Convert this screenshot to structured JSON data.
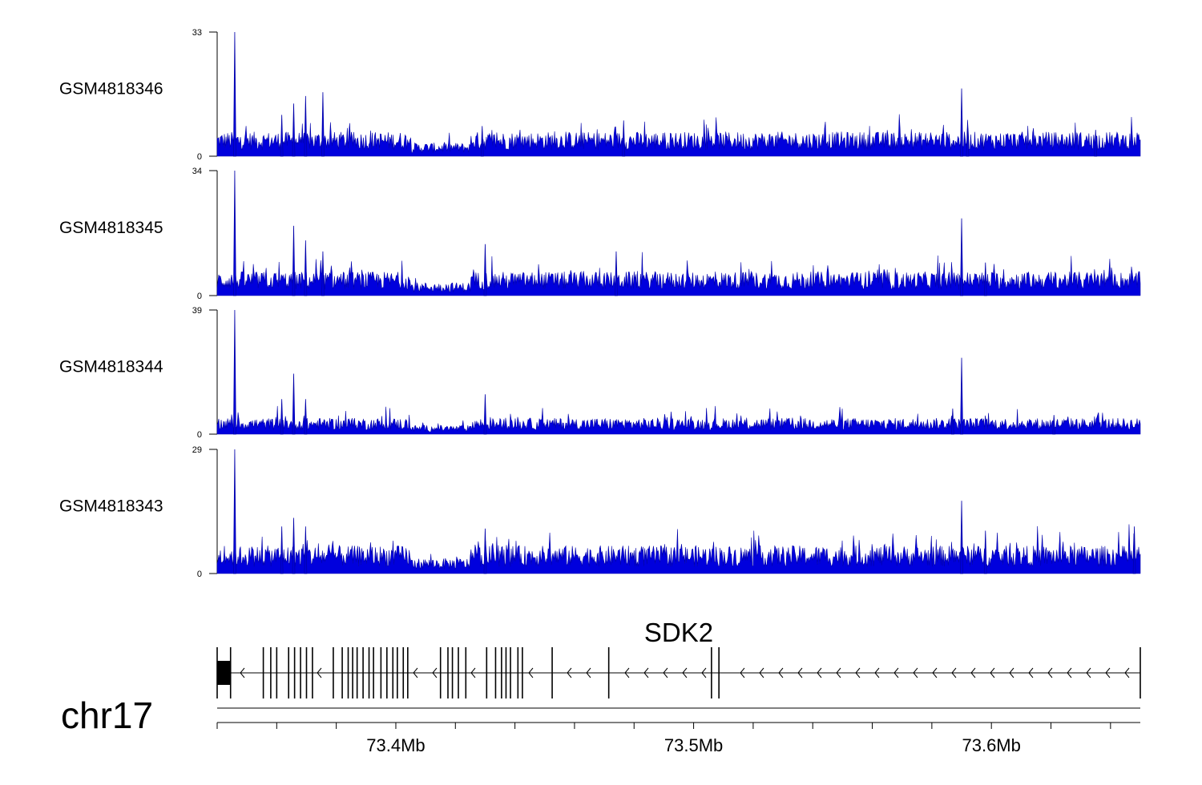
{
  "chart_data": {
    "type": "area",
    "chrom": "chr17",
    "xlim_mb": [
      73.34,
      73.65
    ],
    "x_ticks": [
      {
        "value": 73.4,
        "label": "73.4Mb"
      },
      {
        "value": 73.5,
        "label": "73.5Mb"
      },
      {
        "value": 73.6,
        "label": "73.6Mb"
      }
    ],
    "minor_tick_step_mb": 0.02,
    "color": "#0000dd",
    "tracks": [
      {
        "name": "GSM4818346",
        "ymax": 33,
        "ymin": 0,
        "ymax_label": "33",
        "ymin_label": "0",
        "baseline": 4.5,
        "peaks": [
          {
            "x": 73.3459,
            "y": 33
          },
          {
            "x": 73.3617,
            "y": 11
          },
          {
            "x": 73.3657,
            "y": 14
          },
          {
            "x": 73.3697,
            "y": 16
          },
          {
            "x": 73.3755,
            "y": 17
          },
          {
            "x": 73.429,
            "y": 8
          },
          {
            "x": 73.4765,
            "y": 9.5
          },
          {
            "x": 73.59,
            "y": 18
          },
          {
            "x": 73.592,
            "y": 8
          },
          {
            "x": 73.635,
            "y": 7
          }
        ]
      },
      {
        "name": "GSM4818345",
        "ymax": 34,
        "ymin": 0,
        "ymax_label": "34",
        "ymin_label": "0",
        "baseline": 4.5,
        "peaks": [
          {
            "x": 73.3459,
            "y": 34
          },
          {
            "x": 73.3657,
            "y": 19
          },
          {
            "x": 73.3697,
            "y": 15
          },
          {
            "x": 73.3755,
            "y": 12
          },
          {
            "x": 73.43,
            "y": 14
          },
          {
            "x": 73.474,
            "y": 12
          },
          {
            "x": 73.59,
            "y": 21
          },
          {
            "x": 73.598,
            "y": 9
          }
        ]
      },
      {
        "name": "GSM4818344",
        "ymax": 39,
        "ymin": 0,
        "ymax_label": "39",
        "ymin_label": "0",
        "baseline": 3.5,
        "peaks": [
          {
            "x": 73.3459,
            "y": 39
          },
          {
            "x": 73.3617,
            "y": 11
          },
          {
            "x": 73.3657,
            "y": 19
          },
          {
            "x": 73.3697,
            "y": 11
          },
          {
            "x": 73.43,
            "y": 12.5
          },
          {
            "x": 73.59,
            "y": 24
          },
          {
            "x": 73.587,
            "y": 8
          },
          {
            "x": 73.621,
            "y": 6
          }
        ]
      },
      {
        "name": "GSM4818343",
        "ymax": 29,
        "ymin": 0,
        "ymax_label": "29",
        "ymin_label": "0",
        "baseline": 4.5,
        "peaks": [
          {
            "x": 73.3459,
            "y": 29
          },
          {
            "x": 73.3617,
            "y": 11
          },
          {
            "x": 73.3657,
            "y": 13
          },
          {
            "x": 73.3697,
            "y": 11
          },
          {
            "x": 73.43,
            "y": 10.5
          },
          {
            "x": 73.59,
            "y": 17
          },
          {
            "x": 73.598,
            "y": 10
          },
          {
            "x": 73.648,
            "y": 11
          }
        ]
      }
    ],
    "gene": {
      "name": "SDK2",
      "start": 73.34,
      "end": 73.65,
      "strand": "-",
      "exons": [
        73.34,
        73.3445,
        73.3555,
        73.358,
        73.36,
        73.364,
        73.366,
        73.368,
        73.37,
        73.372,
        73.379,
        73.382,
        73.384,
        73.3855,
        73.387,
        73.389,
        73.391,
        73.3925,
        73.395,
        73.397,
        73.399,
        73.4005,
        73.4025,
        73.404,
        73.415,
        73.4175,
        73.419,
        73.421,
        73.4235,
        73.4305,
        73.4335,
        73.4355,
        73.437,
        73.4385,
        73.441,
        73.4425,
        73.4525,
        73.4715,
        73.506,
        73.5085,
        73.65
      ]
    }
  }
}
